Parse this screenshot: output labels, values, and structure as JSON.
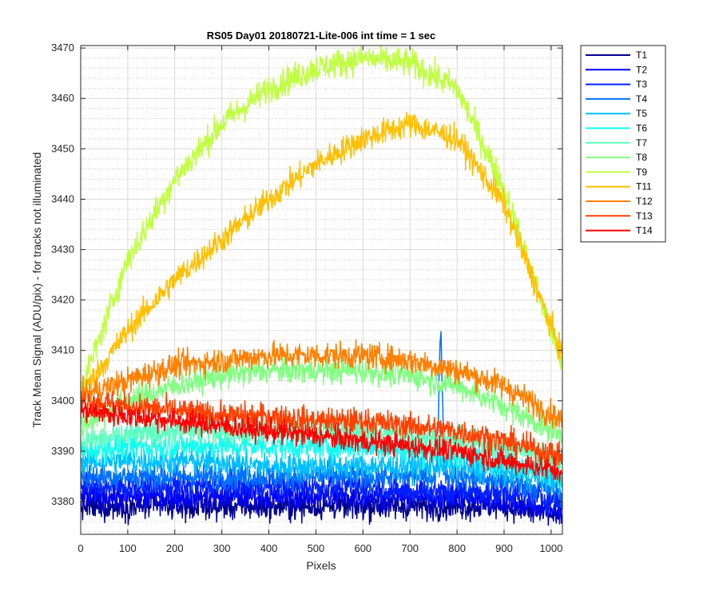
{
  "chart_data": {
    "type": "line",
    "title": "RS05 Day01 20180721-Lite-006 int time = 1 sec",
    "xlabel": "Pixels",
    "ylabel": "Track Mean Signal (ADU/pix) - for tracks not illuminated",
    "xlim": [
      0,
      1024
    ],
    "ylim": [
      3373.5,
      3470.5
    ],
    "x_ticks": [
      "0",
      "100",
      "200",
      "300",
      "400",
      "500",
      "600",
      "700",
      "800",
      "900",
      "1000"
    ],
    "y_ticks": [
      "3380",
      "3390",
      "3400",
      "3410",
      "3420",
      "3430",
      "3440",
      "3450",
      "3460",
      "3470"
    ],
    "grid": "major and minor",
    "legend_position": "outside-right",
    "x": [
      0,
      100,
      200,
      300,
      400,
      500,
      600,
      700,
      800,
      900,
      1024
    ],
    "series": [
      {
        "name": "T1",
        "color": "#00008F",
        "noise": 1.8,
        "values": [
          3379,
          3379,
          3379,
          3379,
          3379,
          3379,
          3379,
          3379,
          3379,
          3379,
          3377
        ]
      },
      {
        "name": "T2",
        "color": "#0000EF",
        "noise": 1.8,
        "values": [
          3381,
          3381,
          3381,
          3381,
          3381,
          3381,
          3381,
          3381,
          3381,
          3380,
          3378
        ]
      },
      {
        "name": "T3",
        "color": "#0020FF",
        "noise": 1.8,
        "values": [
          3383,
          3383,
          3383,
          3383,
          3383,
          3383,
          3383,
          3382,
          3382,
          3382,
          3380
        ]
      },
      {
        "name": "T4",
        "color": "#0070FF",
        "noise": 1.8,
        "values": [
          3385,
          3385,
          3385,
          3385,
          3385,
          3385,
          3385,
          3385,
          3385,
          3384,
          3382
        ]
      },
      {
        "name": "T5",
        "color": "#00BFFF",
        "noise": 1.8,
        "values": [
          3388,
          3388,
          3388,
          3388,
          3387,
          3387,
          3387,
          3387,
          3387,
          3386,
          3384
        ]
      },
      {
        "name": "T6",
        "color": "#10FFEF",
        "noise": 1.8,
        "values": [
          3390,
          3391,
          3391,
          3391,
          3391,
          3391,
          3391,
          3390,
          3389,
          3388,
          3385
        ]
      },
      {
        "name": "T7",
        "color": "#60FFBF",
        "noise": 1.8,
        "values": [
          3392,
          3393,
          3394,
          3394,
          3394,
          3394,
          3394,
          3393,
          3392,
          3391,
          3388
        ]
      },
      {
        "name": "T8",
        "color": "#80FF80",
        "noise": 1.8,
        "values": [
          3395,
          3400,
          3403,
          3405,
          3406,
          3406,
          3406,
          3405,
          3403,
          3399,
          3393
        ]
      },
      {
        "name": "T9",
        "color": "#BFFF40",
        "noise": 2.0,
        "values": [
          3402,
          3428,
          3444,
          3455,
          3462,
          3466,
          3468,
          3467,
          3462,
          3442,
          3407
        ]
      },
      {
        "name": "T11",
        "color": "#FFBF00",
        "noise": 1.8,
        "values": [
          3401,
          3414,
          3424,
          3432,
          3440,
          3447,
          3452,
          3455,
          3452,
          3439,
          3409
        ]
      },
      {
        "name": "T12",
        "color": "#FF8000",
        "noise": 1.8,
        "values": [
          3401,
          3404,
          3407,
          3408,
          3409,
          3409,
          3409,
          3408,
          3406,
          3403,
          3396
        ]
      },
      {
        "name": "T13",
        "color": "#FF4000",
        "noise": 1.8,
        "values": [
          3400,
          3399,
          3398,
          3397,
          3397,
          3396,
          3396,
          3395,
          3394,
          3392,
          3389
        ]
      },
      {
        "name": "T14",
        "color": "#FF0000",
        "noise": 1.6,
        "values": [
          3398,
          3397,
          3396,
          3395,
          3394,
          3393,
          3392,
          3391,
          3390,
          3388,
          3386
        ]
      }
    ],
    "annotations": [
      {
        "series": "T4",
        "type": "spike",
        "x": 765,
        "peak": 3414
      }
    ]
  }
}
